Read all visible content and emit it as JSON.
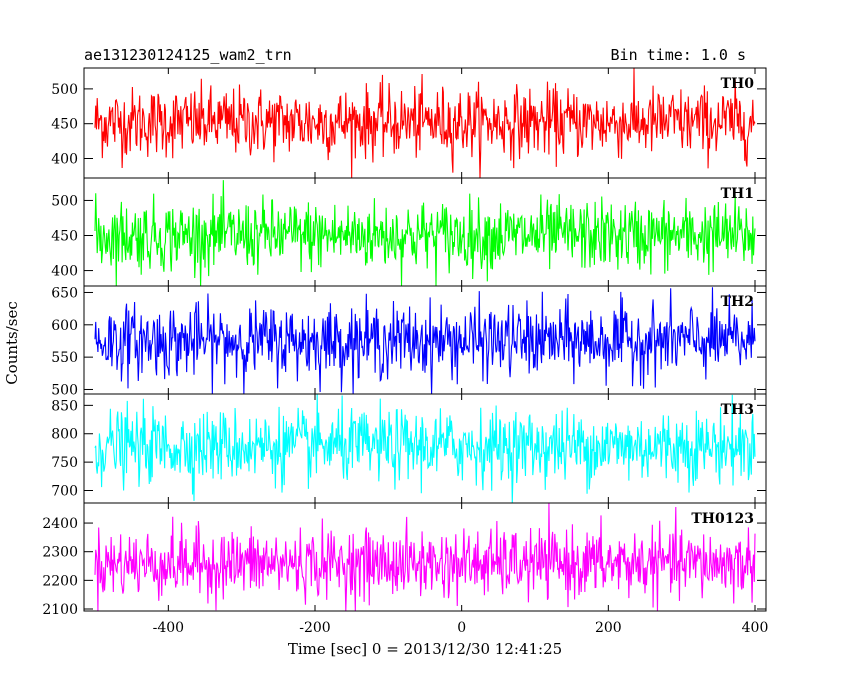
{
  "chart_data": {
    "type": "line",
    "title": "ae131230124125_wam2_trn",
    "subtitle": "Bin time: 1.0 s",
    "xlabel": "Time [sec] 0 = 2013/12/30 12:41:25",
    "ylabel": "Counts/sec",
    "xlim": [
      -515,
      415
    ],
    "x_range": [
      -500,
      400
    ],
    "x_bin": 1.0,
    "xticks": [
      -400,
      -200,
      0,
      200,
      400
    ],
    "grid": false,
    "panels": [
      {
        "name": "TH0",
        "color": "#ff0000",
        "ylim": [
          372,
          530
        ],
        "yticks": [
          400,
          450,
          500
        ],
        "mean": 452,
        "spread": 25,
        "min": 372,
        "max": 530
      },
      {
        "name": "TH1",
        "color": "#00ff00",
        "ylim": [
          378,
          532
        ],
        "yticks": [
          400,
          450,
          500
        ],
        "mean": 450,
        "spread": 25,
        "min": 378,
        "max": 532
      },
      {
        "name": "TH2",
        "color": "#0000ff",
        "ylim": [
          493,
          660
        ],
        "yticks": [
          500,
          550,
          600,
          650
        ],
        "mean": 575,
        "spread": 28,
        "min": 493,
        "max": 660
      },
      {
        "name": "TH3",
        "color": "#00ffff",
        "ylim": [
          678,
          870
        ],
        "yticks": [
          700,
          750,
          800,
          850
        ],
        "mean": 778,
        "spread": 32,
        "min": 678,
        "max": 870
      },
      {
        "name": "TH0123",
        "color": "#ff00ff",
        "ylim": [
          2093,
          2470
        ],
        "yticks": [
          2100,
          2200,
          2300,
          2400
        ],
        "mean": 2258,
        "spread": 60,
        "min": 2093,
        "max": 2470
      }
    ]
  }
}
